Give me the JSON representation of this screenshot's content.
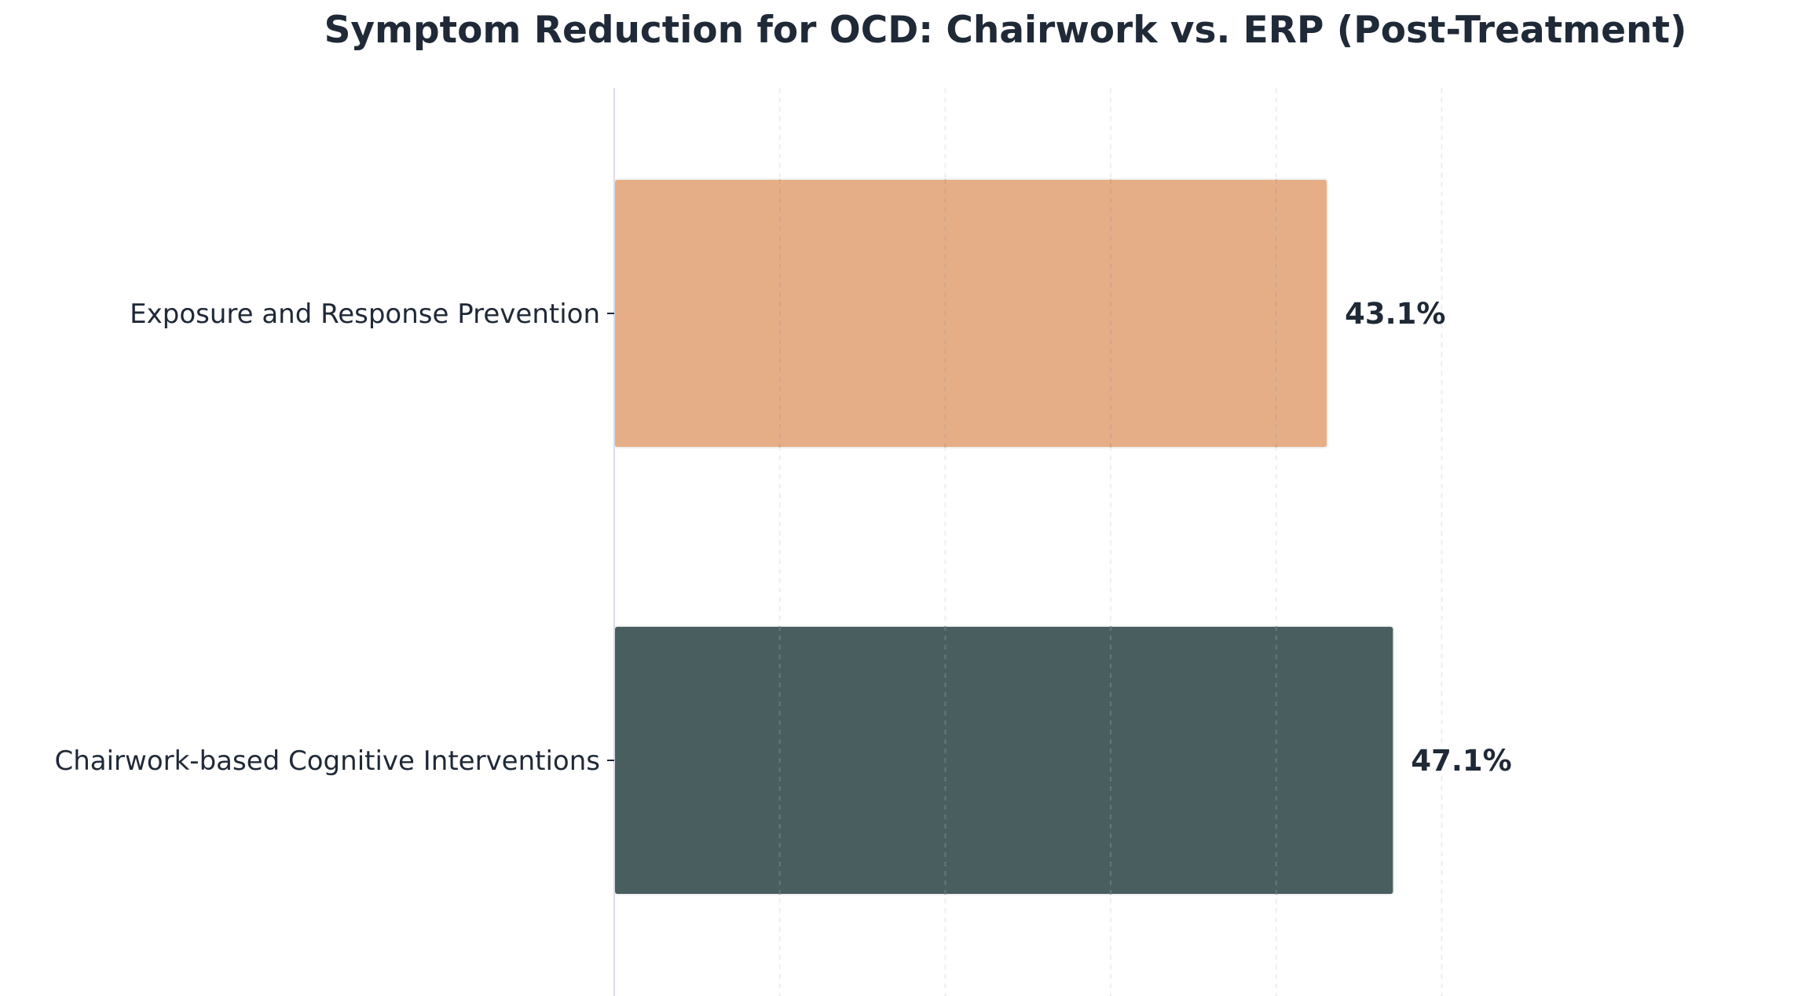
{
  "chart_data": {
    "type": "bar",
    "orientation": "horizontal",
    "title": "Symptom Reduction for OCD: Chairwork vs. ERP (Post-Treatment)",
    "xlabel": "",
    "ylabel": "",
    "categories": [
      "Exposure and Response Prevention",
      "Chairwork-based Cognitive Interventions"
    ],
    "values": [
      43.1,
      47.1
    ],
    "value_labels": [
      "43.1%",
      "47.1%"
    ],
    "colors": [
      "#e6ae87",
      "#485e5f"
    ],
    "xlim": [
      0,
      70
    ],
    "x_grid_ticks": [
      10,
      20,
      30,
      40,
      50
    ],
    "grid": "x-dashed",
    "legend": "none"
  }
}
